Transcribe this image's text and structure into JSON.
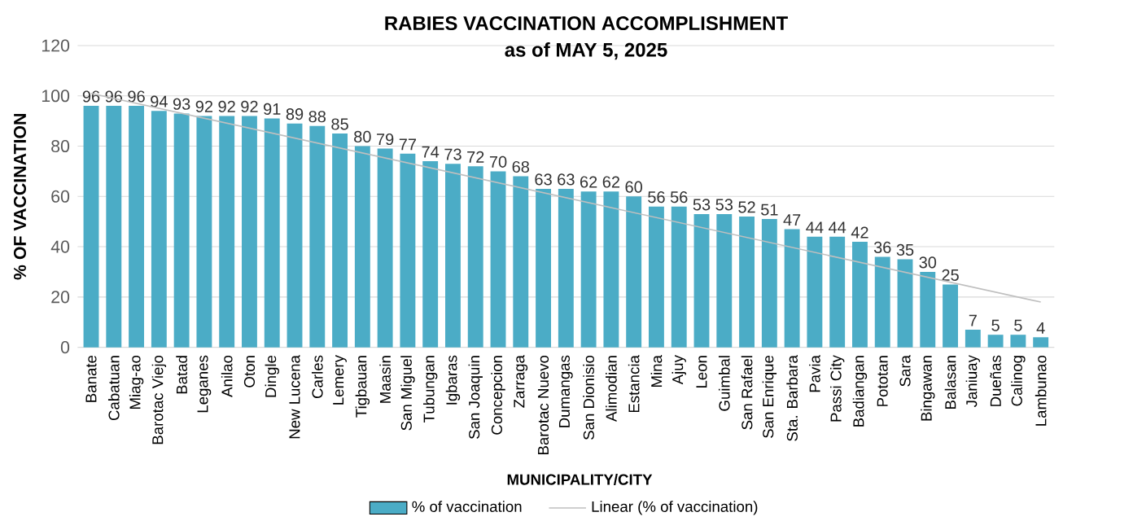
{
  "chart_data": {
    "type": "bar",
    "title": "RABIES VACCINATION  ACCOMPLISHMENT",
    "subtitle": "as of MAY 5, 2025",
    "xlabel": "MUNICIPALITY/CITY",
    "ylabel": "% OF VACCINATION",
    "categories": [
      "Banate",
      "Cabatuan",
      "Miag-ao",
      "Barotac Viejo",
      "Batad",
      "Leganes",
      "Anilao",
      "Oton",
      "Dingle",
      "New Lucena",
      "Carles",
      "Lemery",
      "Tigbauan",
      "Maasin",
      "San Miguel",
      "Tubungan",
      "Igbaras",
      "San Joaquin",
      "Concepcion",
      "Zarraga",
      "Barotac Nuevo",
      "Dumangas",
      "San Dionisio",
      "Alimodian",
      "Estancia",
      "Mina",
      "Ajuy",
      "Leon",
      "Guimbal",
      "San Rafael",
      "San Enrique",
      "Sta. Barbara",
      "Pavia",
      "Passi City",
      "Badiangan",
      "Pototan",
      "Sara",
      "Bingawan",
      "Balasan",
      "Janiuay",
      "Dueñas",
      "Calinog",
      "Lambunao"
    ],
    "series": [
      {
        "name": "% of vaccination",
        "color": "#4bacc6",
        "values": [
          96,
          96,
          96,
          94,
          93,
          92,
          92,
          92,
          91,
          89,
          88,
          85,
          80,
          79,
          77,
          74,
          73,
          72,
          70,
          68,
          63,
          63,
          62,
          62,
          60,
          56,
          56,
          53,
          53,
          52,
          51,
          47,
          44,
          44,
          42,
          36,
          35,
          30,
          25,
          7,
          5,
          5,
          4
        ],
        "value_labels": [
          "96",
          "96",
          "96",
          "94",
          "93",
          "92",
          "92",
          "92",
          "91",
          "89",
          "88",
          "85",
          "80",
          "79",
          "77",
          "74",
          "73",
          "72",
          "70",
          "68",
          "63",
          "63",
          "62",
          "62",
          "60",
          "56",
          "56",
          "53",
          "53",
          "52",
          "51",
          "47",
          "44",
          "44",
          "42",
          "36",
          "35",
          "30",
          "25",
          "7",
          "5",
          "5",
          "4"
        ]
      },
      {
        "name": "Linear (% of vaccination)",
        "type": "line",
        "color": "#bfbfbf",
        "x": [
          "Banate",
          "Lambunao"
        ],
        "values": [
          101,
          18
        ]
      }
    ],
    "ylim": [
      0,
      120
    ],
    "yticks": [
      0,
      20,
      40,
      60,
      80,
      100,
      120
    ],
    "grid": "y",
    "legend": "bottom"
  }
}
